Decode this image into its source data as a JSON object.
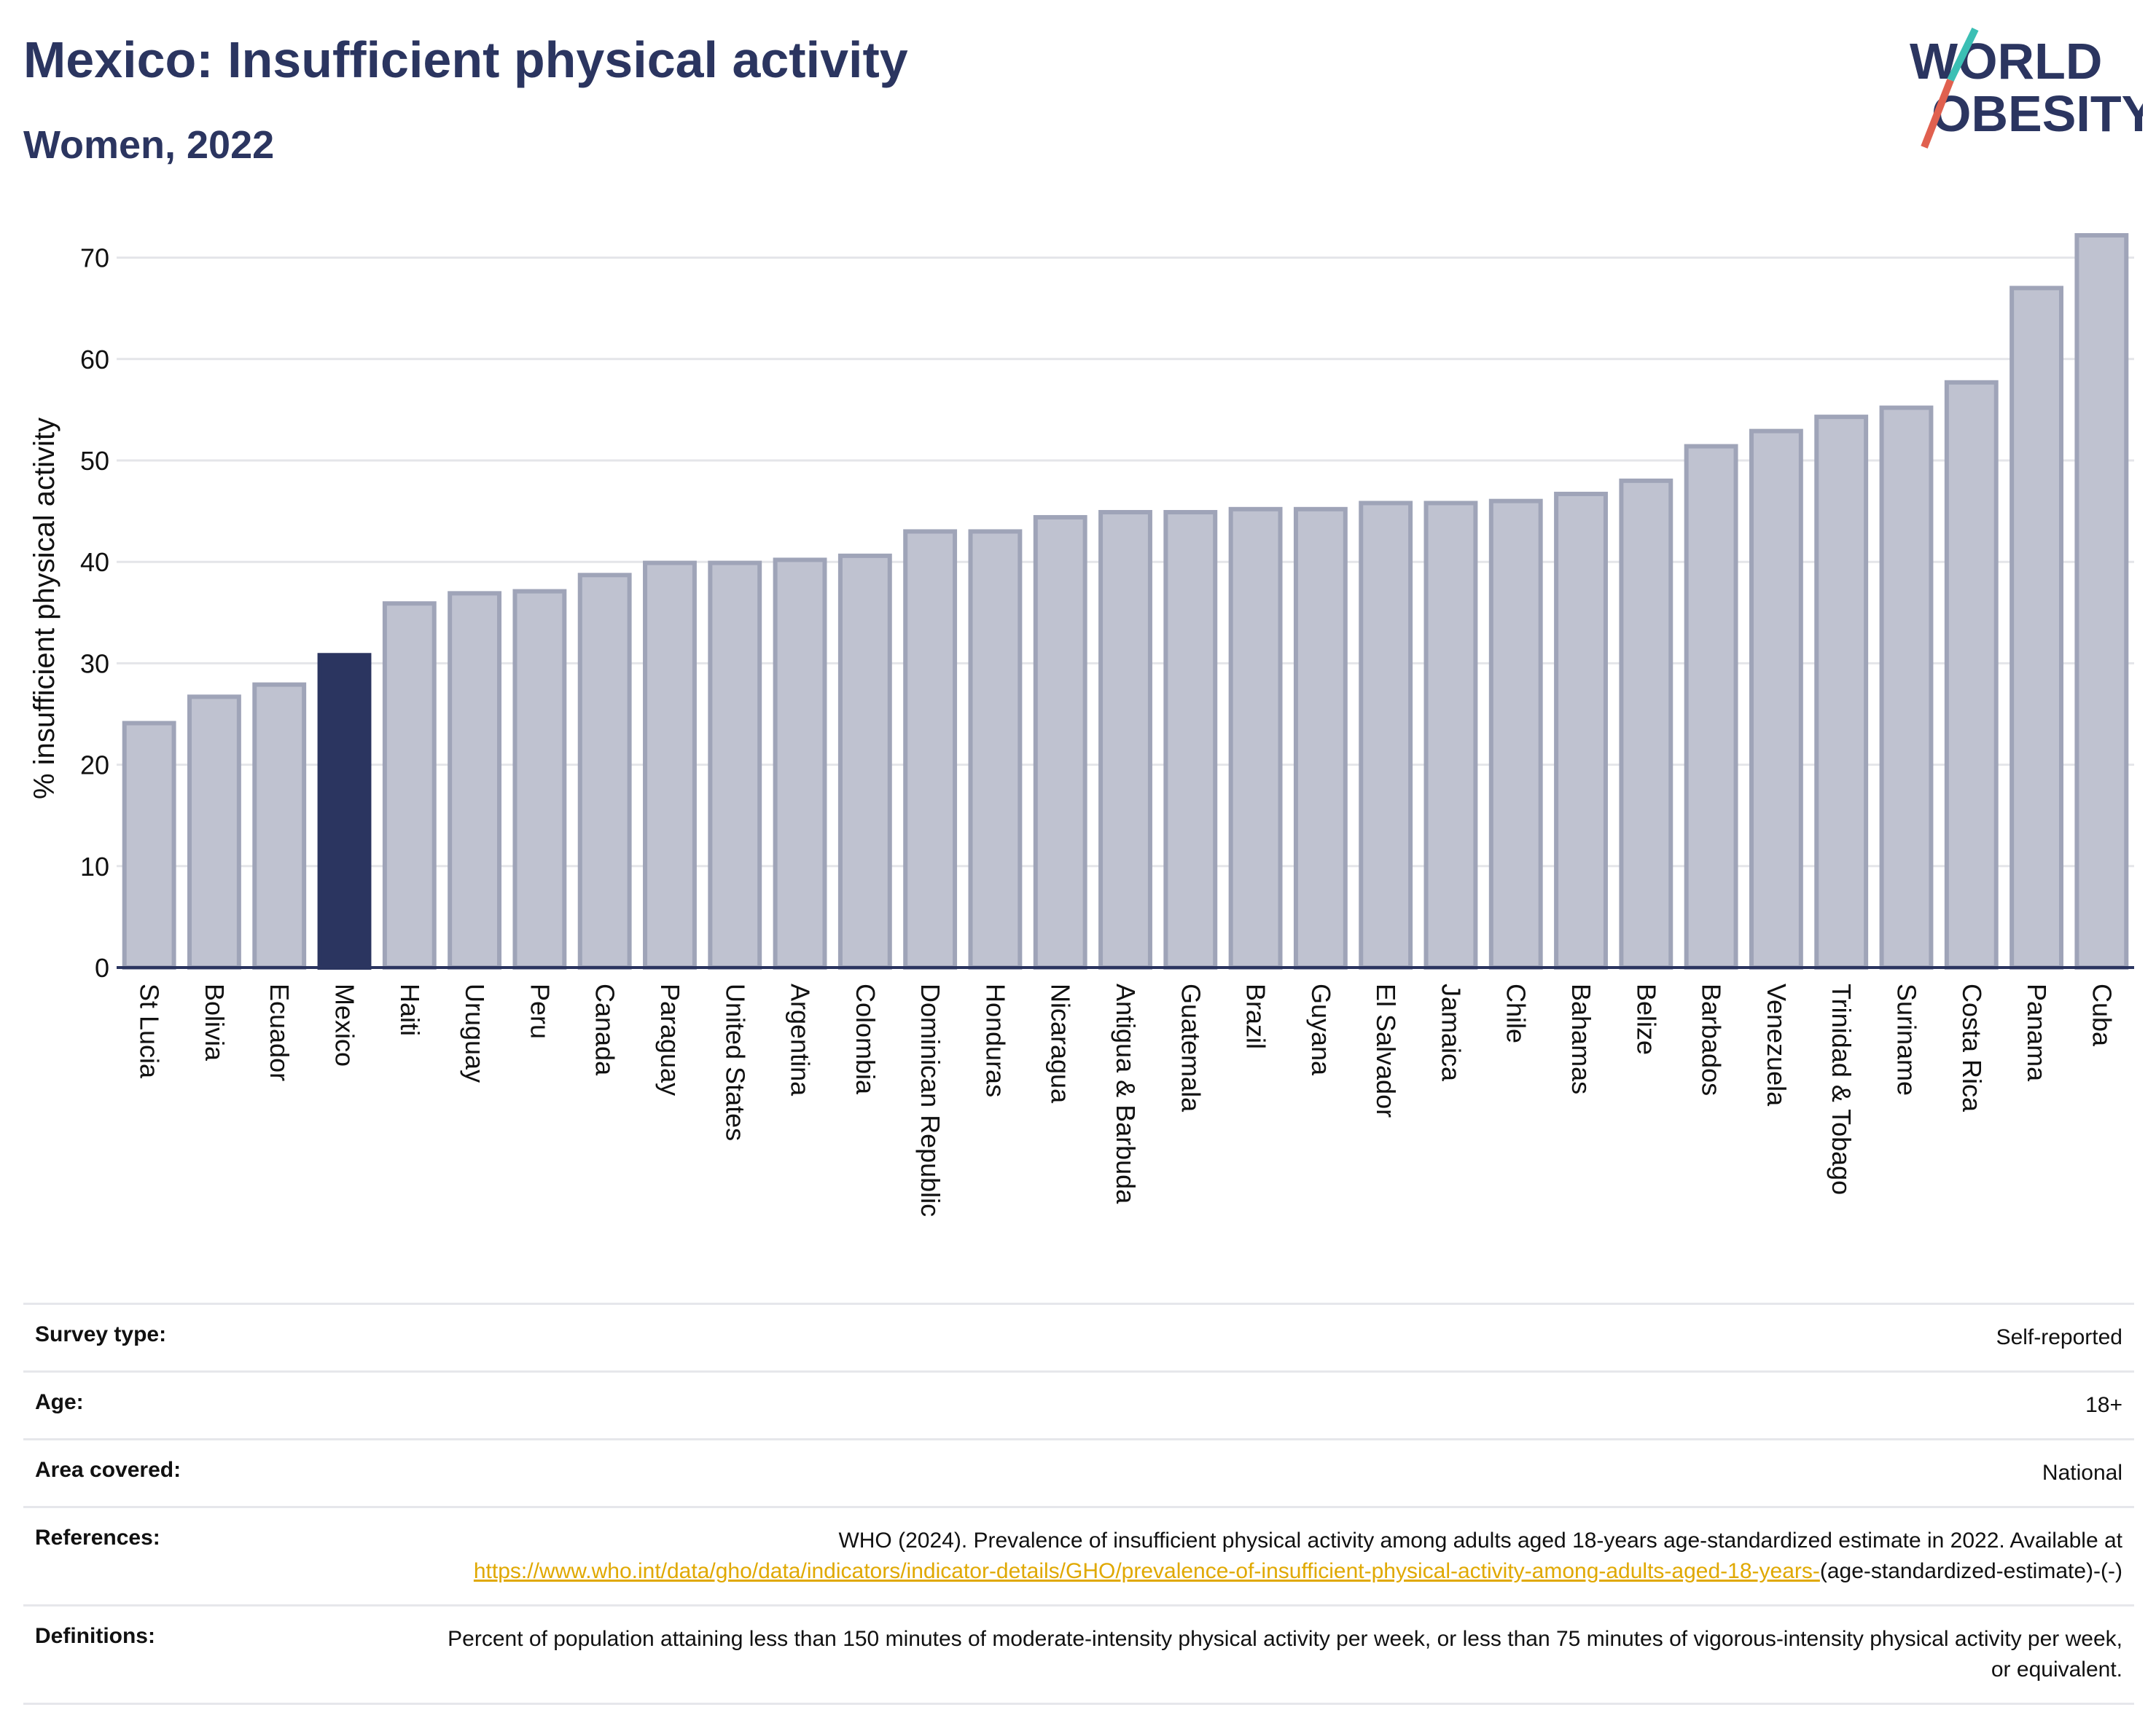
{
  "header": {
    "title": "Mexico: Insufficient physical activity",
    "subtitle": "Women, 2022"
  },
  "logo": {
    "line1": "WORLD",
    "line2": "OBESITY",
    "slash_color": "#e0604f",
    "accent_color": "#3bbfb4"
  },
  "colors": {
    "highlight": "#2b3560",
    "bar": "#bfc2d0",
    "bar_border": "#9fa4b8",
    "gridline": "#e4e5e9"
  },
  "chart_data": {
    "type": "bar",
    "title": "Mexico: Insufficient physical activity",
    "subtitle": "Women, 2022",
    "ylabel": "% insufficient physical activity",
    "xlabel": "",
    "ylim": [
      0,
      72
    ],
    "yticks": [
      0,
      10,
      20,
      30,
      40,
      50,
      60,
      70
    ],
    "grid": true,
    "highlight": "Mexico",
    "categories": [
      "St Lucia",
      "Bolivia",
      "Ecuador",
      "Mexico",
      "Haiti",
      "Uruguay",
      "Peru",
      "Canada",
      "Paraguay",
      "United States",
      "Argentina",
      "Colombia",
      "Dominican Republic",
      "Honduras",
      "Nicaragua",
      "Antigua & Barbuda",
      "Guatemala",
      "Brazil",
      "Guyana",
      "El Salvador",
      "Jamaica",
      "Chile",
      "Bahamas",
      "Belize",
      "Barbados",
      "Venezuela",
      "Trinidad & Tobago",
      "Suriname",
      "Costa Rica",
      "Panama",
      "Cuba"
    ],
    "values": [
      24.1,
      26.7,
      27.9,
      30.8,
      35.9,
      36.9,
      37.1,
      38.7,
      39.9,
      39.9,
      40.2,
      40.6,
      43.0,
      43.0,
      44.4,
      44.9,
      44.9,
      45.2,
      45.2,
      45.8,
      45.8,
      46.0,
      46.7,
      48.0,
      51.4,
      52.9,
      54.3,
      55.2,
      57.7,
      67.0,
      72.2
    ]
  },
  "info": [
    {
      "label": "Survey type:",
      "value": "Self-reported"
    },
    {
      "label": "Age:",
      "value": "18+"
    },
    {
      "label": "Area covered:",
      "value": "National"
    },
    {
      "label": "References:",
      "value": "WHO (2024). Prevalence of insufficient physical activity among adults aged 18-years age-standardized estimate in 2022. Available at",
      "link": "https://www.who.int/data/gho/data/indicators/indicator-details/GHO/prevalence-of-insufficient-physical-activity-among-adults-aged-18-years-",
      "link_suffix": "(age-standardized-estimate)-(-)"
    },
    {
      "label": "Definitions:",
      "value": "Percent of population attaining less than 150 minutes of moderate-intensity physical activity per week, or less than 75 minutes of vigorous-intensity physical activity per week, or equivalent."
    }
  ]
}
